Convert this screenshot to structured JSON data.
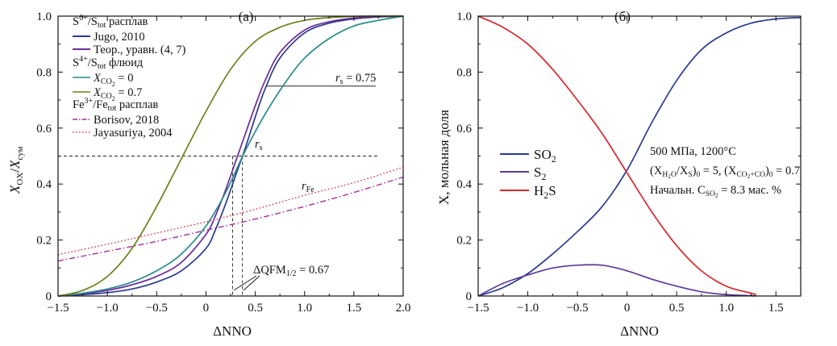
{
  "chart_data": [
    {
      "type": "line",
      "panel_label": "(а)",
      "xlabel": "ΔNNO",
      "ylabel_main": "X",
      "ylabel_sub": "OX",
      "ylabel_sep": "/",
      "ylabel_main2": "X",
      "ylabel_sub2": "сум",
      "xlim": [
        -1.5,
        2.0
      ],
      "ylim": [
        0,
        1.0
      ],
      "xticks": [
        -1.5,
        -1.0,
        -0.5,
        0.0,
        0.5,
        1.0,
        1.5,
        2.0
      ],
      "xtick_labels": [
        "−1.5",
        "−1.0",
        "−0.5",
        "0",
        "0.5",
        "1.0",
        "1.5",
        "2.0"
      ],
      "yticks": [
        0,
        0.2,
        0.4,
        0.6,
        0.8,
        1.0
      ],
      "ytick_labels": [
        "0",
        "0.2",
        "0.4",
        "0.6",
        "0.8",
        "1.0"
      ],
      "legend_placement": "top-left",
      "legend_groups": [
        {
          "header_main": "S",
          "header_sup": "6+",
          "header_mid": "/S",
          "header_sub": "tot",
          "header_tail": " расплав",
          "entries": [
            {
              "label": "Jugo, 2010",
              "series_index": 0
            },
            {
              "label": "Теор., уравн. (4, 7)",
              "series_index": 1
            }
          ]
        },
        {
          "header_main": "S",
          "header_sup": "4+",
          "header_mid": "/S",
          "header_sub": "tot",
          "header_tail": " флюид",
          "entries": [
            {
              "label_main": "X",
              "label_sub": "CO",
              "label_subsub": "2",
              "label_tail": " = 0",
              "series_index": 2
            },
            {
              "label_main": "X",
              "label_sub": "CO",
              "label_subsub": "2",
              "label_tail": " = 0.7",
              "series_index": 3
            }
          ]
        },
        {
          "header_main": "Fe",
          "header_sup": "3+",
          "header_mid": "/Fe",
          "header_sub": "tot",
          "header_tail": " расплав",
          "entries": [
            {
              "label": "Borisov, 2018",
              "series_index": 4
            },
            {
              "label": "Jayasuriya, 2004",
              "series_index": 5
            }
          ]
        }
      ],
      "series": [
        {
          "name": "Jugo, 2010",
          "color": "#2b3a8f",
          "dash": "solid",
          "x": [
            -1.5,
            -1.25,
            -1.0,
            -0.75,
            -0.5,
            -0.25,
            0.0,
            0.1,
            0.2,
            0.3,
            0.4,
            0.5,
            0.6,
            0.75,
            1.0,
            1.25,
            1.5,
            1.75,
            2.0
          ],
          "y": [
            0.0,
            0.005,
            0.012,
            0.025,
            0.05,
            0.09,
            0.17,
            0.24,
            0.33,
            0.43,
            0.53,
            0.64,
            0.74,
            0.85,
            0.94,
            0.975,
            0.99,
            0.997,
            1.0
          ]
        },
        {
          "name": "Теор., уравн. (4, 7)",
          "color": "#6a2c9a",
          "dash": "solid",
          "x": [
            -1.5,
            -1.25,
            -1.0,
            -0.75,
            -0.5,
            -0.25,
            0.0,
            0.1,
            0.2,
            0.3,
            0.4,
            0.5,
            0.6,
            0.75,
            1.0,
            1.25,
            1.5,
            1.75,
            2.0
          ],
          "y": [
            0.0,
            0.008,
            0.02,
            0.04,
            0.07,
            0.12,
            0.22,
            0.29,
            0.38,
            0.48,
            0.58,
            0.68,
            0.77,
            0.87,
            0.95,
            0.98,
            0.993,
            0.998,
            1.0
          ]
        },
        {
          "name": "XCO2 = 0",
          "color": "#2a8a8a",
          "dash": "solid",
          "x": [
            -1.5,
            -1.25,
            -1.0,
            -0.75,
            -0.5,
            -0.25,
            0.0,
            0.2,
            0.4,
            0.6,
            0.8,
            1.0,
            1.25,
            1.5,
            1.75,
            2.0
          ],
          "y": [
            0.0,
            0.01,
            0.025,
            0.05,
            0.09,
            0.15,
            0.25,
            0.37,
            0.52,
            0.65,
            0.76,
            0.85,
            0.92,
            0.965,
            0.985,
            1.0
          ]
        },
        {
          "name": "XCO2 = 0.7",
          "color": "#6f7f1f",
          "dash": "solid",
          "x": [
            -1.5,
            -1.25,
            -1.0,
            -0.75,
            -0.5,
            -0.25,
            0.0,
            0.25,
            0.5,
            0.75,
            1.0,
            1.25,
            1.5,
            1.75,
            2.0
          ],
          "y": [
            0.0,
            0.02,
            0.07,
            0.17,
            0.32,
            0.49,
            0.66,
            0.81,
            0.91,
            0.96,
            0.985,
            0.995,
            0.999,
            1.0,
            1.0
          ]
        },
        {
          "name": "Borisov, 2018",
          "color": "#a0309a",
          "dash": "dashdot",
          "x": [
            -1.5,
            -1.0,
            -0.5,
            0.0,
            0.5,
            1.0,
            1.5,
            2.0
          ],
          "y": [
            0.125,
            0.16,
            0.195,
            0.235,
            0.275,
            0.32,
            0.37,
            0.425
          ]
        },
        {
          "name": "Jayasuriya, 2004",
          "color": "#d8364b",
          "dash": "dotted",
          "x": [
            -1.5,
            -1.0,
            -0.5,
            0.0,
            0.5,
            1.0,
            1.5,
            2.0
          ],
          "y": [
            0.148,
            0.185,
            0.225,
            0.265,
            0.31,
            0.36,
            0.405,
            0.46
          ]
        }
      ],
      "annotations": {
        "rs_label_main": "r",
        "rs_label_sub": "s",
        "rs_eq_text": " = 0.75",
        "rfe_label_main": "r",
        "rfe_label_sub": "Fe",
        "dqfm_main": "ΔQFM",
        "dqfm_sub": "1/2",
        "dqfm_tail": " = 0.67",
        "half_level": 0.5,
        "half_level_end_x": 1.75,
        "rs075_level": 0.75,
        "rs075_start_x": 0.62,
        "rs075_end_x": 1.72,
        "vline_x1": 0.27,
        "vline_x2": 0.37
      }
    },
    {
      "type": "line",
      "panel_label": "(б)",
      "xlabel": "ΔNNO",
      "ylabel": "X, мольная доля",
      "xlim": [
        -1.5,
        1.75
      ],
      "ylim": [
        0,
        1.0
      ],
      "xticks": [
        -1.5,
        -1.0,
        -0.5,
        0.0,
        0.5,
        1.0,
        1.5
      ],
      "xtick_labels": [
        "−1.5",
        "−1.0",
        "−0.5",
        "0",
        "0.5",
        "1.0",
        "1.5"
      ],
      "yticks": [
        0,
        0.2,
        0.4,
        0.6,
        0.8,
        1.0
      ],
      "ytick_labels": [
        "0",
        "0.2",
        "0.4",
        "0.6",
        "0.8",
        "1.0"
      ],
      "legend_placement": "center-left",
      "series": [
        {
          "name": "SO2",
          "label_main": "SO",
          "label_sub": "2",
          "color": "#2b3a8f",
          "x": [
            -1.5,
            -1.25,
            -1.0,
            -0.75,
            -0.5,
            -0.25,
            0.0,
            0.25,
            0.5,
            0.75,
            1.0,
            1.25,
            1.5,
            1.75
          ],
          "y": [
            0.0,
            0.03,
            0.08,
            0.15,
            0.23,
            0.32,
            0.45,
            0.62,
            0.77,
            0.88,
            0.94,
            0.975,
            0.99,
            0.995
          ]
        },
        {
          "name": "S2",
          "label_main": "S",
          "label_sub": "2",
          "color": "#5b3a9b",
          "x": [
            -1.5,
            -1.25,
            -1.0,
            -0.75,
            -0.5,
            -0.25,
            0.0,
            0.25,
            0.5,
            0.75,
            1.0,
            1.25,
            1.3
          ],
          "y": [
            0.0,
            0.045,
            0.075,
            0.1,
            0.11,
            0.11,
            0.09,
            0.06,
            0.035,
            0.015,
            0.005,
            0.001,
            0.0
          ]
        },
        {
          "name": "H2S",
          "label_main": "H",
          "label_sub": "2",
          "label_tail": "S",
          "color": "#d8282e",
          "x": [
            -1.5,
            -1.25,
            -1.0,
            -0.75,
            -0.5,
            -0.25,
            0.0,
            0.25,
            0.5,
            0.75,
            1.0,
            1.25,
            1.3
          ],
          "y": [
            1.0,
            0.96,
            0.9,
            0.81,
            0.7,
            0.58,
            0.44,
            0.3,
            0.18,
            0.09,
            0.035,
            0.01,
            0.005
          ]
        }
      ],
      "annotations": {
        "line1": "500 МПа, 1200°C",
        "line2_a": "(X",
        "line2_a_sub": "H",
        "line2_a_subsub": "2",
        "line2_a_sub2": "O",
        "line2_b": "/X",
        "line2_b_sub": "S",
        "line2_c": ")",
        "line2_c_sub": "0",
        "line2_d": " = 5, (X",
        "line2_d_sub": "CO",
        "line2_d_subsub": "2",
        "line2_d_sub2": "+CO",
        "line2_e": ")",
        "line2_e_sub": "0",
        "line2_f": " = 0.7",
        "line3_a": "Начальн. C",
        "line3_a_sub": "SO",
        "line3_a_subsub": "2",
        "line3_b": " = 8.3 мас. %"
      }
    }
  ]
}
